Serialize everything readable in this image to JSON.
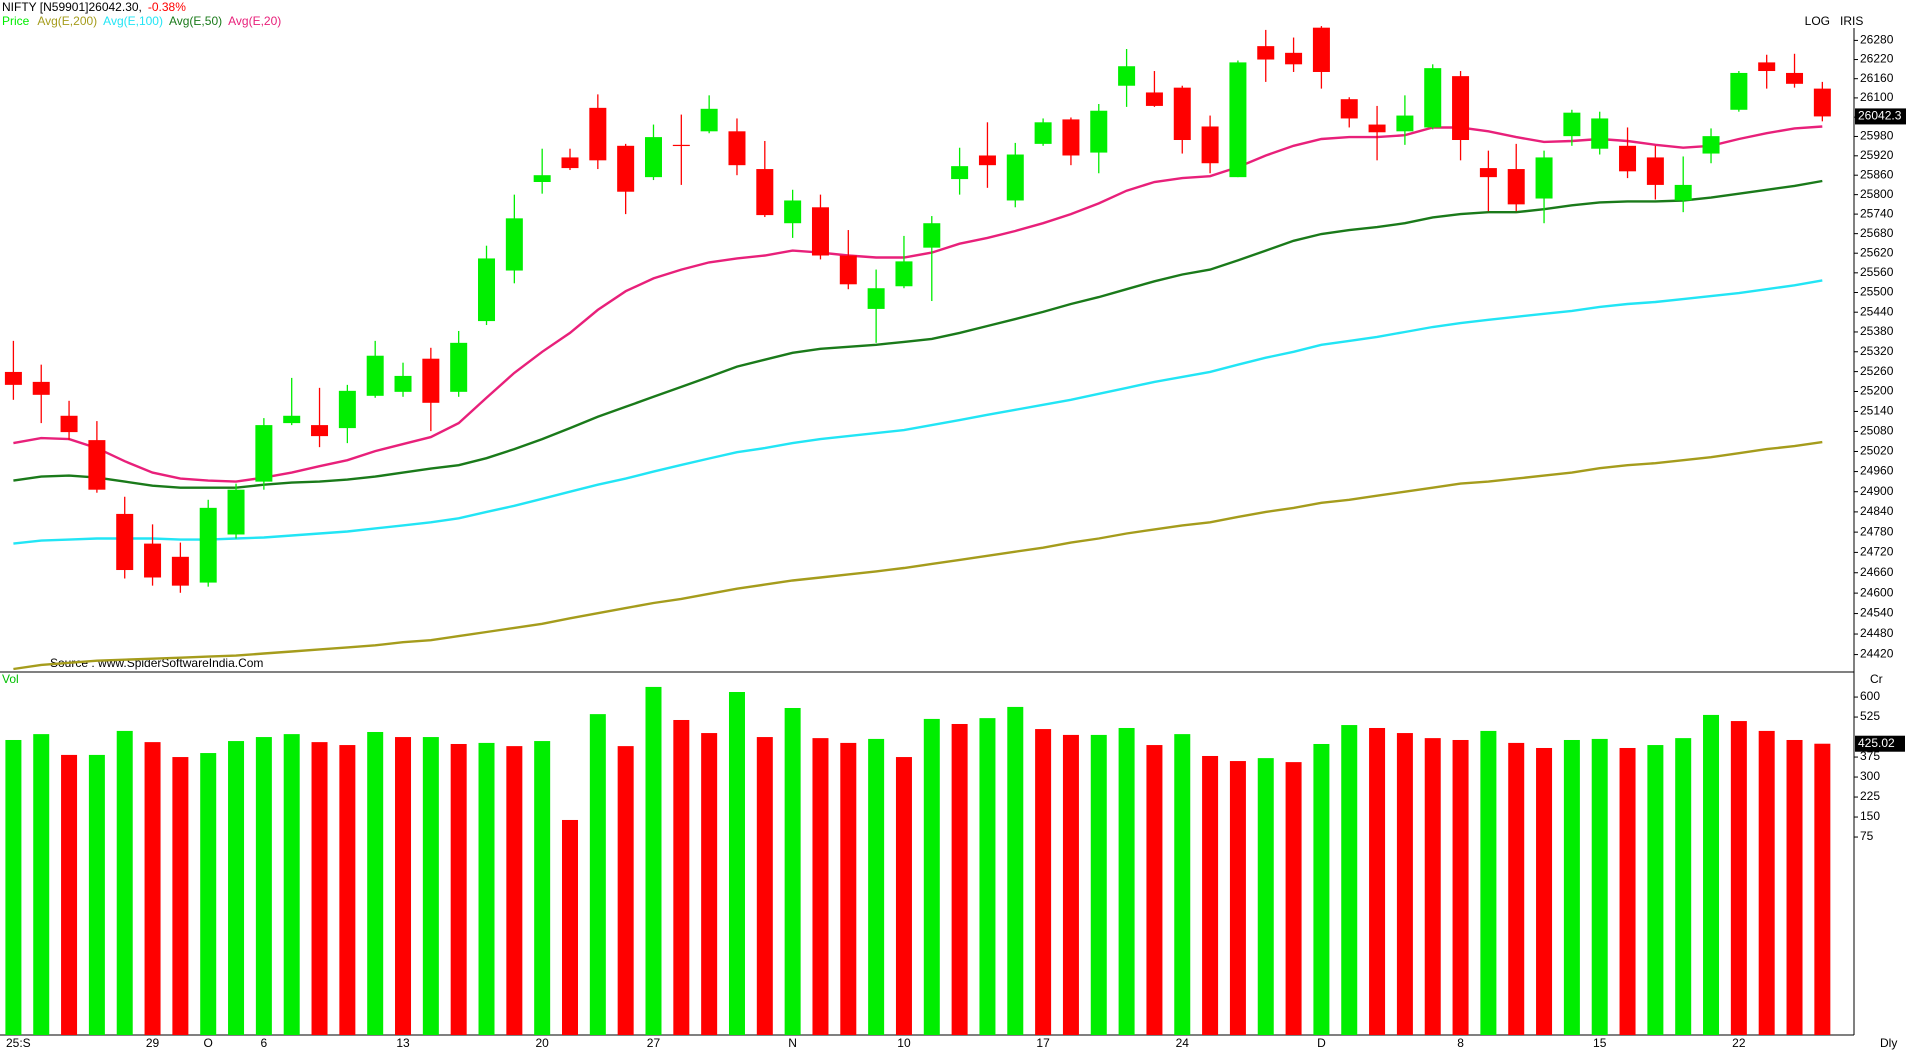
{
  "chart_data": [
    {
      "type": "candlestick",
      "title": "NIFTY [N59901]26042.30,",
      "change": "-0.38%",
      "price_label": "Price",
      "scale_label": "LOG",
      "corner_label": "IRIS",
      "source": "Source : www.SpiderSoftwareIndia.Com",
      "log_scale": true,
      "up_color": "#00ee00",
      "down_color": "#ff0000",
      "last_price_label": "26042.3",
      "open": [
        25259,
        25229,
        25127,
        25054,
        24834,
        24746,
        24707,
        24631,
        24773,
        24930,
        25105,
        25099,
        25090,
        25187,
        25199,
        25299,
        25199,
        25413,
        25567,
        25839,
        25915,
        26069,
        25951,
        25854,
        25954,
        25996,
        25996,
        25879,
        25712,
        25761,
        25613,
        25450,
        25519,
        25637,
        25848,
        25921,
        25782,
        25957,
        26033,
        25930,
        26138,
        26117,
        26132,
        26011,
        25854,
        26262,
        26241,
        26320,
        26096,
        26017,
        25996,
        26008,
        26168,
        25882,
        25879,
        25788,
        25981,
        25942,
        25951,
        25915,
        25782,
        25927,
        26063,
        26211,
        26178,
        26129
      ],
      "high": [
        25353,
        25281,
        25172,
        25111,
        24885,
        24803,
        24749,
        24876,
        24924,
        25120,
        25241,
        25211,
        25220,
        25353,
        25287,
        25332,
        25383,
        25643,
        25800,
        25942,
        25942,
        26111,
        25957,
        26017,
        26048,
        26108,
        26036,
        25966,
        25815,
        25800,
        25691,
        25570,
        25673,
        25734,
        25945,
        26024,
        25960,
        26036,
        26039,
        26081,
        26253,
        26184,
        26138,
        26045,
        26217,
        26313,
        26289,
        26325,
        26102,
        26075,
        26108,
        26205,
        26184,
        25936,
        25957,
        25936,
        26063,
        26057,
        26008,
        25951,
        25918,
        26005,
        26184,
        26235,
        26238,
        26150
      ],
      "low": [
        25175,
        25105,
        25054,
        24897,
        24643,
        24622,
        24601,
        24619,
        24761,
        24906,
        25099,
        25033,
        25045,
        25181,
        25184,
        25081,
        25184,
        25401,
        25528,
        25803,
        25876,
        25879,
        25740,
        25845,
        25830,
        25990,
        25860,
        25731,
        25667,
        25601,
        25510,
        25347,
        25513,
        25474,
        25800,
        25821,
        25761,
        25951,
        25891,
        25866,
        26072,
        26072,
        25927,
        25866,
        25854,
        26150,
        26181,
        26129,
        26008,
        25906,
        25954,
        26002,
        25906,
        25749,
        25749,
        25712,
        25951,
        25924,
        25851,
        25785,
        25746,
        25897,
        26057,
        26129,
        26132,
        26027
      ],
      "close": [
        25220,
        25190,
        25078,
        24906,
        24668,
        24646,
        24622,
        24852,
        24906,
        25099,
        25127,
        25066,
        25202,
        25308,
        25247,
        25166,
        25347,
        25604,
        25727,
        25860,
        25882,
        25906,
        25809,
        25978,
        25951,
        26066,
        25891,
        25737,
        25782,
        25613,
        25525,
        25513,
        25595,
        25712,
        25888,
        25891,
        25924,
        26024,
        25921,
        26060,
        26199,
        26075,
        25969,
        25897,
        26211,
        26220,
        26205,
        26181,
        26036,
        25993,
        26045,
        26193,
        25969,
        25854,
        25770,
        25915,
        26054,
        26036,
        25872,
        25830,
        25830,
        25981,
        26178,
        26184,
        26144,
        26042.3
      ],
      "series": [
        {
          "name": "Avg(E,200)",
          "color": "#a59c1c",
          "values": [
            24378,
            24390,
            24396,
            24402,
            24405,
            24408,
            24411,
            24414,
            24417,
            24423,
            24429,
            24435,
            24441,
            24447,
            24456,
            24462,
            24474,
            24486,
            24498,
            24510,
            24526,
            24541,
            24556,
            24571,
            24583,
            24598,
            24613,
            24625,
            24637,
            24646,
            24655,
            24664,
            24674,
            24686,
            24698,
            24710,
            24722,
            24734,
            24749,
            24761,
            24776,
            24788,
            24800,
            24809,
            24825,
            24840,
            24852,
            24867,
            24876,
            24888,
            24900,
            24912,
            24924,
            24930,
            24939,
            24948,
            24957,
            24970,
            24979,
            24985,
            24994,
            25003,
            25015,
            25027,
            25036,
            25048
          ]
        },
        {
          "name": "Avg(E,100)",
          "color": "#22e5f5",
          "values": [
            24746,
            24755,
            24758,
            24761,
            24761,
            24761,
            24758,
            24758,
            24761,
            24764,
            24770,
            24776,
            24782,
            24791,
            24800,
            24809,
            24821,
            24840,
            24858,
            24879,
            24900,
            24921,
            24939,
            24960,
            24980,
            24999,
            25018,
            25030,
            25045,
            25057,
            25066,
            25075,
            25084,
            25099,
            25114,
            25130,
            25145,
            25160,
            25175,
            25193,
            25211,
            25229,
            25244,
            25259,
            25281,
            25302,
            25320,
            25341,
            25353,
            25365,
            25380,
            25395,
            25407,
            25417,
            25426,
            25435,
            25444,
            25456,
            25465,
            25471,
            25480,
            25489,
            25498,
            25510,
            25522,
            25537
          ]
        },
        {
          "name": "Avg(E,50)",
          "color": "#1a7a1a",
          "values": [
            24933,
            24945,
            24948,
            24942,
            24930,
            24918,
            24912,
            24912,
            24912,
            24921,
            24927,
            24930,
            24936,
            24945,
            24957,
            24969,
            24979,
            25000,
            25027,
            25057,
            25090,
            25124,
            25154,
            25184,
            25214,
            25244,
            25275,
            25296,
            25317,
            25329,
            25335,
            25341,
            25350,
            25359,
            25377,
            25398,
            25419,
            25441,
            25465,
            25486,
            25510,
            25534,
            25555,
            25570,
            25598,
            25628,
            25658,
            25679,
            25691,
            25700,
            25712,
            25730,
            25740,
            25746,
            25746,
            25755,
            25767,
            25776,
            25779,
            25779,
            25782,
            25791,
            25803,
            25815,
            25827,
            25842
          ]
        },
        {
          "name": "Avg(E,20)",
          "color": "#e8207a",
          "values": [
            25045,
            25060,
            25057,
            25030,
            24991,
            24957,
            24939,
            24933,
            24930,
            24942,
            24957,
            24976,
            24994,
            25021,
            25042,
            25063,
            25105,
            25181,
            25256,
            25320,
            25377,
            25447,
            25504,
            25543,
            25570,
            25592,
            25604,
            25613,
            25628,
            25622,
            25613,
            25607,
            25607,
            25622,
            25649,
            25667,
            25688,
            25712,
            25740,
            25773,
            25812,
            25839,
            25851,
            25857,
            25885,
            25921,
            25951,
            25972,
            25978,
            25978,
            25984,
            26008,
            26008,
            25996,
            25978,
            25963,
            25966,
            25972,
            25966,
            25954,
            25945,
            25951,
            25972,
            25990,
            26005,
            26011
          ]
        }
      ],
      "ylim": [
        24375,
        26330
      ],
      "yticks": [
        24420,
        24480,
        24540,
        24600,
        24660,
        24720,
        24780,
        24840,
        24900,
        24960,
        25020,
        25080,
        25140,
        25200,
        25260,
        25320,
        25380,
        25440,
        25500,
        25560,
        25620,
        25680,
        25740,
        25800,
        25860,
        25920,
        25980,
        26040,
        26100,
        26160,
        26220,
        26280
      ]
    },
    {
      "type": "bar",
      "title": "Vol",
      "unit": "Cr",
      "x_label": "Dly",
      "last_value_label": "425.02",
      "categories": [
        "25:S",
        null,
        null,
        null,
        null,
        "29",
        null,
        "O",
        null,
        "6",
        null,
        null,
        null,
        null,
        "13",
        null,
        null,
        null,
        null,
        "20",
        null,
        null,
        null,
        "27",
        null,
        null,
        null,
        null,
        "N",
        null,
        null,
        null,
        "10",
        null,
        null,
        null,
        null,
        "17",
        null,
        null,
        null,
        null,
        "24",
        null,
        null,
        null,
        null,
        "D",
        null,
        null,
        null,
        null,
        "8",
        null,
        null,
        null,
        null,
        "15",
        null,
        null,
        null,
        null,
        "22",
        null,
        null,
        null
      ],
      "values": [
        439,
        461,
        383,
        383,
        473,
        431,
        375,
        390,
        435,
        450,
        461,
        431,
        420,
        469,
        450,
        450,
        424,
        428,
        416,
        435,
        139,
        536,
        416,
        638,
        514,
        465,
        619,
        450,
        559,
        446,
        428,
        443,
        375,
        518,
        499,
        521,
        563,
        480,
        458,
        458,
        484,
        420,
        461,
        379,
        360,
        371,
        356,
        424,
        495,
        484,
        465,
        446,
        439,
        473,
        428,
        409,
        439,
        443,
        409,
        420,
        446,
        533,
        510,
        473,
        439,
        425.02
      ],
      "colors": [
        "#00ee00",
        "#00ee00",
        "#ff0000",
        "#00ee00",
        "#00ee00",
        "#ff0000",
        "#ff0000",
        "#00ee00",
        "#00ee00",
        "#00ee00",
        "#00ee00",
        "#ff0000",
        "#ff0000",
        "#00ee00",
        "#ff0000",
        "#00ee00",
        "#ff0000",
        "#00ee00",
        "#ff0000",
        "#00ee00",
        "#ff0000",
        "#00ee00",
        "#ff0000",
        "#00ee00",
        "#ff0000",
        "#ff0000",
        "#00ee00",
        "#ff0000",
        "#00ee00",
        "#ff0000",
        "#ff0000",
        "#00ee00",
        "#ff0000",
        "#00ee00",
        "#ff0000",
        "#00ee00",
        "#00ee00",
        "#ff0000",
        "#ff0000",
        "#00ee00",
        "#00ee00",
        "#ff0000",
        "#00ee00",
        "#ff0000",
        "#ff0000",
        "#00ee00",
        "#ff0000",
        "#00ee00",
        "#00ee00",
        "#ff0000",
        "#ff0000",
        "#ff0000",
        "#ff0000",
        "#00ee00",
        "#ff0000",
        "#ff0000",
        "#00ee00",
        "#00ee00",
        "#ff0000",
        "#00ee00",
        "#00ee00",
        "#00ee00",
        "#ff0000",
        "#ff0000",
        "#ff0000",
        "#ff0000"
      ],
      "ylim": [
        -667.5,
        694
      ],
      "yticks": [
        75,
        150,
        225,
        300,
        375,
        525,
        600
      ]
    }
  ]
}
